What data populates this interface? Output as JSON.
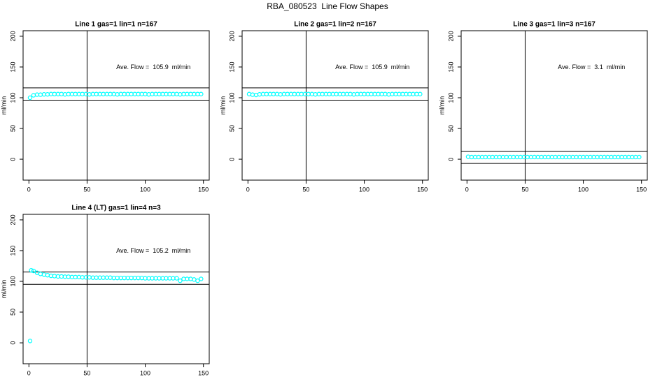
{
  "title": "RBA_080523  Line Flow Shapes",
  "chart_data": [
    {
      "type": "scatter",
      "title": "Line 1 gas=1 lin=1 n=167",
      "y_label": "ml/min",
      "annotation": "Ave. Flow =  105.9  ml/min",
      "color": "#00ffff",
      "xlim": [
        -5,
        155
      ],
      "ylim": [
        -34,
        209
      ],
      "xticks": [
        0,
        50,
        100,
        150
      ],
      "yticks": [
        0,
        50,
        100,
        150,
        200
      ],
      "hlines": [
        116,
        96
      ],
      "vline": 50,
      "x": [
        1,
        4,
        7,
        10,
        13,
        16,
        19,
        22,
        25,
        28,
        31,
        34,
        37,
        40,
        43,
        46,
        49,
        52,
        55,
        58,
        61,
        64,
        67,
        70,
        73,
        76,
        79,
        82,
        85,
        88,
        91,
        94,
        97,
        100,
        103,
        106,
        109,
        112,
        115,
        118,
        121,
        124,
        127,
        130,
        133,
        136,
        139,
        142,
        145,
        148
      ],
      "y": [
        100,
        104,
        105,
        105,
        105.5,
        105.5,
        106,
        106,
        106,
        106,
        105.5,
        106,
        106,
        106,
        106,
        106,
        106,
        105.5,
        106,
        106,
        106,
        106,
        106,
        106,
        106,
        105.5,
        106,
        106,
        106,
        106,
        106,
        106,
        106,
        106,
        105.5,
        106,
        106,
        106,
        106,
        106,
        106,
        106,
        106,
        105.5,
        106,
        106,
        106,
        106,
        106,
        106
      ]
    },
    {
      "type": "scatter",
      "title": "Line 2 gas=1 lin=2 n=167",
      "y_label": "ml/min",
      "annotation": "Ave. Flow =  105.9  ml/min",
      "color": "#00ffff",
      "xlim": [
        -5,
        155
      ],
      "ylim": [
        -34,
        209
      ],
      "xticks": [
        0,
        50,
        100,
        150
      ],
      "yticks": [
        0,
        50,
        100,
        150,
        200
      ],
      "hlines": [
        116,
        96
      ],
      "vline": 50,
      "x": [
        1,
        4,
        7,
        10,
        13,
        16,
        19,
        22,
        25,
        28,
        31,
        34,
        37,
        40,
        43,
        46,
        49,
        52,
        55,
        58,
        61,
        64,
        67,
        70,
        73,
        76,
        79,
        82,
        85,
        88,
        91,
        94,
        97,
        100,
        103,
        106,
        109,
        112,
        115,
        118,
        121,
        124,
        127,
        130,
        133,
        136,
        139,
        142,
        145,
        148
      ],
      "y": [
        106,
        105,
        104.5,
        105.5,
        106,
        106,
        106,
        106,
        106,
        105.5,
        106,
        106,
        106,
        106,
        106,
        106,
        106,
        106,
        106,
        105.5,
        106,
        106,
        106,
        106,
        106,
        106,
        106,
        106,
        106,
        106,
        105.5,
        106,
        106,
        106,
        106,
        106,
        106,
        106,
        106,
        106,
        105.5,
        106,
        106,
        106,
        106,
        106,
        106,
        106,
        106,
        106
      ]
    },
    {
      "type": "scatter",
      "title": "Line 3 gas=1 lin=3 n=167",
      "y_label": "ml/min",
      "annotation": "Ave. Flow =  3.1  ml/min",
      "color": "#00ffff",
      "xlim": [
        -5,
        155
      ],
      "ylim": [
        -34,
        209
      ],
      "xticks": [
        0,
        50,
        100,
        150
      ],
      "yticks": [
        0,
        50,
        100,
        150,
        200
      ],
      "hlines": [
        13.1,
        -6.9
      ],
      "vline": 50,
      "x": [
        1,
        4,
        7,
        10,
        13,
        16,
        19,
        22,
        25,
        28,
        31,
        34,
        37,
        40,
        43,
        46,
        49,
        52,
        55,
        58,
        61,
        64,
        67,
        70,
        73,
        76,
        79,
        82,
        85,
        88,
        91,
        94,
        97,
        100,
        103,
        106,
        109,
        112,
        115,
        118,
        121,
        124,
        127,
        130,
        133,
        136,
        139,
        142,
        145,
        148
      ],
      "y": [
        4,
        3.5,
        3.5,
        3.5,
        3.5,
        3.5,
        3.5,
        3.5,
        3.5,
        3.5,
        3.5,
        3.5,
        3.5,
        3.5,
        3.5,
        3.5,
        3.5,
        3.5,
        3.5,
        3.5,
        3.5,
        3.5,
        3.5,
        3.5,
        3.5,
        3.5,
        3.5,
        3.5,
        3.5,
        3.5,
        3.5,
        3.5,
        3.5,
        3.5,
        3.5,
        3.5,
        3.5,
        3.5,
        3.5,
        3.5,
        3.5,
        3.5,
        3.5,
        3.5,
        3.5,
        3.5,
        3.5,
        3.5,
        3.5,
        3.5
      ]
    },
    {
      "type": "scatter",
      "title": "Line 4 (LT) gas=1 lin=4 n=3",
      "y_label": "ml/min",
      "annotation": "Ave. Flow =  105.2  ml/min",
      "color": "#00ffff",
      "xlim": [
        -5,
        155
      ],
      "ylim": [
        -34,
        209
      ],
      "xticks": [
        0,
        50,
        100,
        150
      ],
      "yticks": [
        0,
        50,
        100,
        150,
        200
      ],
      "hlines": [
        115.2,
        95.2
      ],
      "vline": 50,
      "x": [
        1,
        2,
        4,
        7,
        10,
        13,
        16,
        19,
        22,
        25,
        28,
        31,
        34,
        37,
        40,
        43,
        46,
        49,
        52,
        55,
        58,
        61,
        64,
        67,
        70,
        73,
        76,
        79,
        82,
        85,
        88,
        91,
        94,
        97,
        100,
        103,
        106,
        109,
        112,
        115,
        118,
        121,
        124,
        127,
        130,
        133,
        136,
        139,
        142,
        145,
        148
      ],
      "y": [
        3,
        118,
        117,
        114,
        112,
        111,
        110,
        109,
        108.5,
        108,
        108,
        107.5,
        107.5,
        107,
        107,
        107,
        106.5,
        106.5,
        106.5,
        106,
        106,
        106,
        106,
        106,
        106,
        105.5,
        105.5,
        105.5,
        105.5,
        105.5,
        105.5,
        105.5,
        105.5,
        105.5,
        105,
        105,
        105,
        105,
        105,
        105,
        105,
        105,
        105,
        105,
        101,
        104,
        104,
        104,
        103,
        101,
        104
      ]
    }
  ]
}
